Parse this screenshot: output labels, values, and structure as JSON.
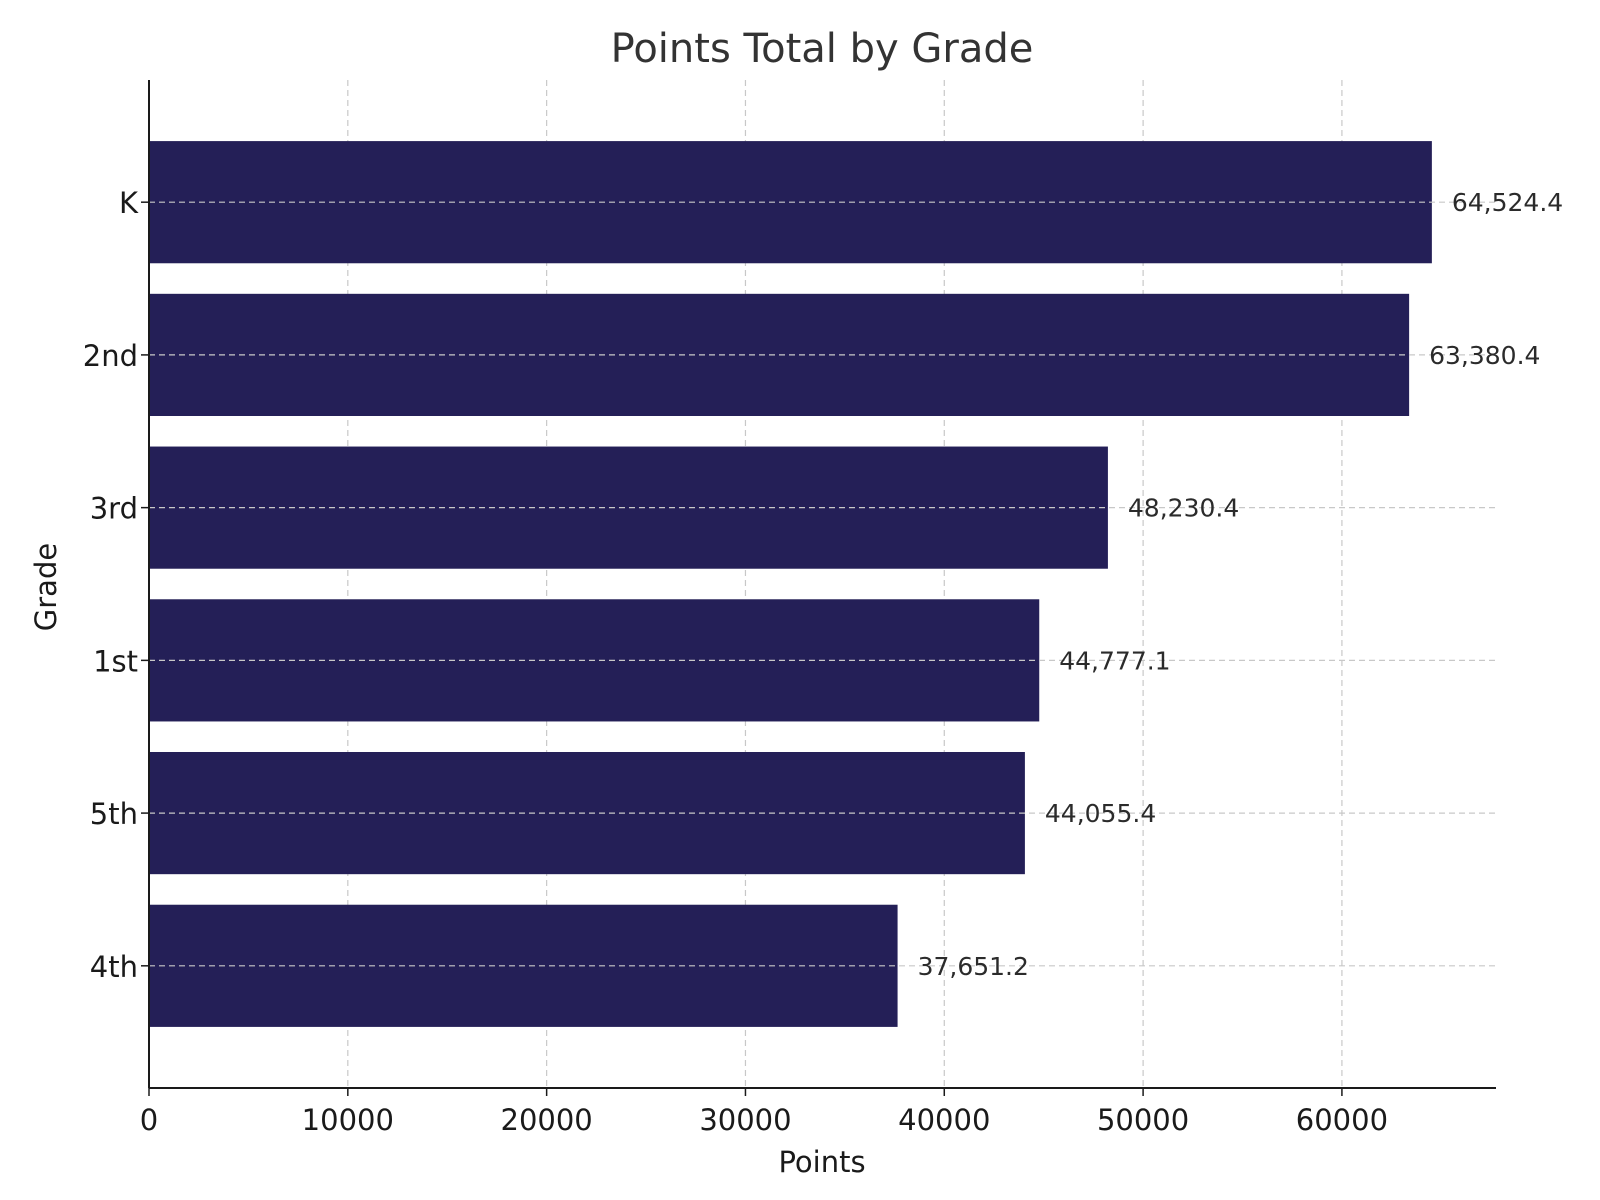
{
  "chart_data": {
    "type": "bar",
    "orientation": "horizontal",
    "title": "Points Total by Grade",
    "xlabel": "Points",
    "ylabel": "Grade",
    "categories": [
      "K",
      "2nd",
      "3rd",
      "1st",
      "5th",
      "4th"
    ],
    "values": [
      64524.4,
      63380.4,
      48230.4,
      44777.1,
      44055.4,
      37651.2
    ],
    "value_labels": [
      "64,524.4",
      "63,380.4",
      "48,230.4",
      "44,777.1",
      "44,055.4",
      "37,651.2"
    ],
    "xticks": [
      0,
      10000,
      20000,
      30000,
      40000,
      50000,
      60000
    ],
    "xlim": [
      0,
      67750
    ],
    "grid": true,
    "bar_color": "#241f57"
  }
}
